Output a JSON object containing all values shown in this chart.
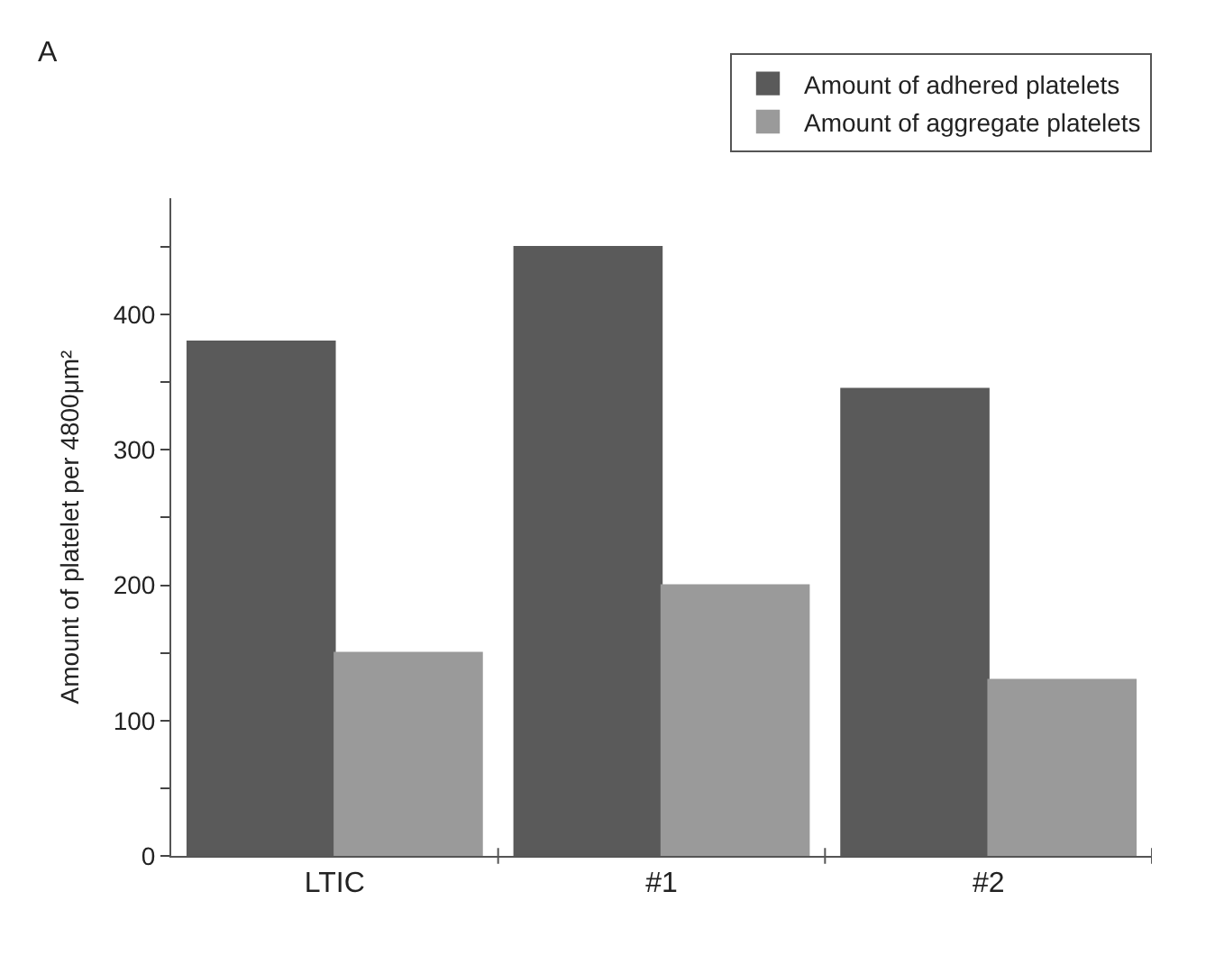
{
  "chart_data": {
    "type": "bar",
    "ylabel": "Amount of platelet per 4800μm²",
    "annotations": [
      "A"
    ],
    "categories": [
      "LTIC",
      "#1",
      "#2"
    ],
    "series": [
      {
        "name": "Amount of adhered platelets",
        "color": "#5a5a5a",
        "values": [
          380,
          450,
          345
        ]
      },
      {
        "name": "Amount of aggregate platelets",
        "color": "#9a9a9a",
        "values": [
          150,
          200,
          130
        ]
      }
    ],
    "ylim": [
      0,
      486
    ],
    "yticks": [
      0,
      {
        "value": 50,
        "label": null
      },
      100,
      {
        "value": 150,
        "label": null
      },
      200,
      {
        "value": 250,
        "label": null
      },
      300,
      {
        "value": 350,
        "label": null
      },
      400,
      {
        "value": 450,
        "label": null
      }
    ],
    "legend": "top right"
  }
}
